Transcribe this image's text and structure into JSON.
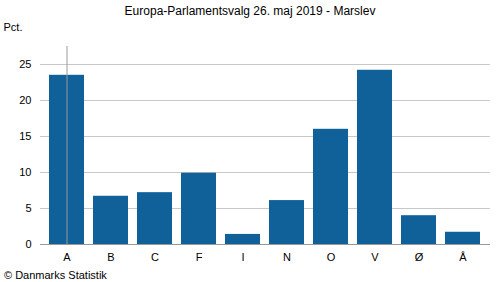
{
  "chart_data": {
    "type": "bar",
    "title": "Europa-Parlamentsvalg 26. maj 2019 - Marslev",
    "y_label": "Pct.",
    "caption": "© Danmarks Statistik",
    "categories": [
      "A",
      "B",
      "C",
      "F",
      "I",
      "N",
      "O",
      "V",
      "Ø",
      "Å"
    ],
    "values": [
      23.5,
      6.7,
      7.2,
      9.9,
      1.4,
      6.1,
      16.0,
      24.2,
      4.0,
      1.7
    ],
    "color": "#10619a",
    "ylim": [
      0,
      27.5
    ],
    "yticks": [
      0,
      5,
      10,
      15,
      20,
      25
    ],
    "grid": true
  }
}
